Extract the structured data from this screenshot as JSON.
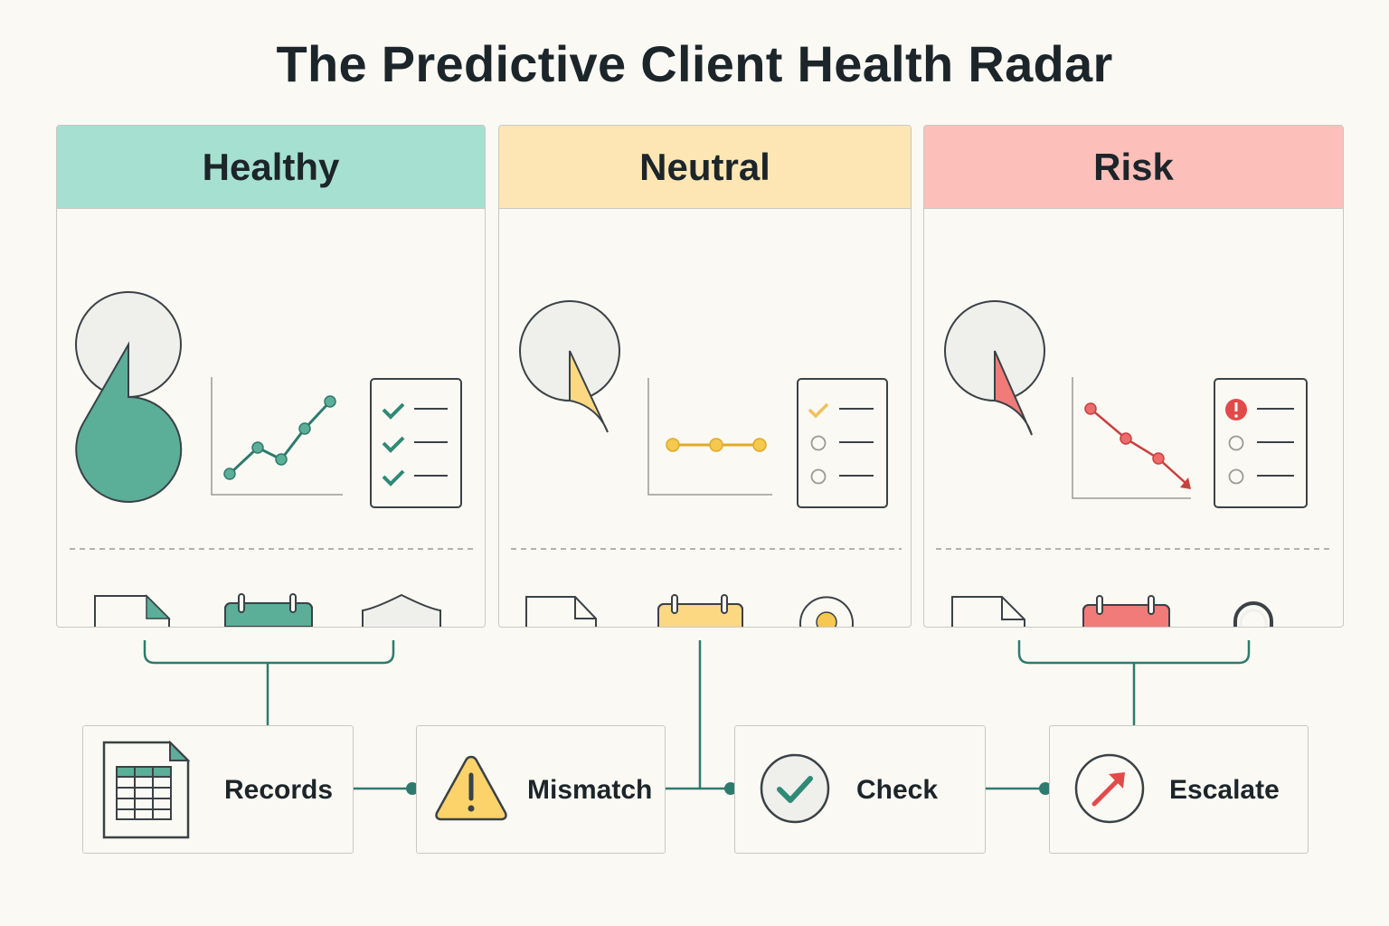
{
  "title": "The Predictive Client Health Radar",
  "colors": {
    "healthy_header": "#a6e0d0",
    "healthy_accent": "#5bae98",
    "neutral_header": "#fde6b3",
    "neutral_accent": "#f5c84f",
    "risk_header": "#fdbfb9",
    "risk_accent": "#ee6b6b",
    "connector": "#2f7a6e"
  },
  "panels": [
    {
      "label": "Healthy",
      "icons": [
        "pie-chart-icon",
        "line-chart-up-icon",
        "checklist-icon",
        "document-icon",
        "calendar-icon",
        "shield-check-icon"
      ]
    },
    {
      "label": "Neutral",
      "icons": [
        "pie-chart-icon",
        "line-chart-flat-icon",
        "checklist-icon",
        "document-icon",
        "calendar-icon",
        "location-pin-icon"
      ]
    },
    {
      "label": "Risk",
      "icons": [
        "pie-chart-icon",
        "line-chart-down-icon",
        "checklist-icon",
        "document-alert-icon",
        "calendar-icon",
        "padlock-icon"
      ]
    }
  ],
  "steps": [
    {
      "label": "Records",
      "icon": "spreadsheet-icon"
    },
    {
      "label": "Mismatch",
      "icon": "warning-icon"
    },
    {
      "label": "Check",
      "icon": "check-circle-icon"
    },
    {
      "label": "Escalate",
      "icon": "escalate-arrow-icon"
    }
  ]
}
